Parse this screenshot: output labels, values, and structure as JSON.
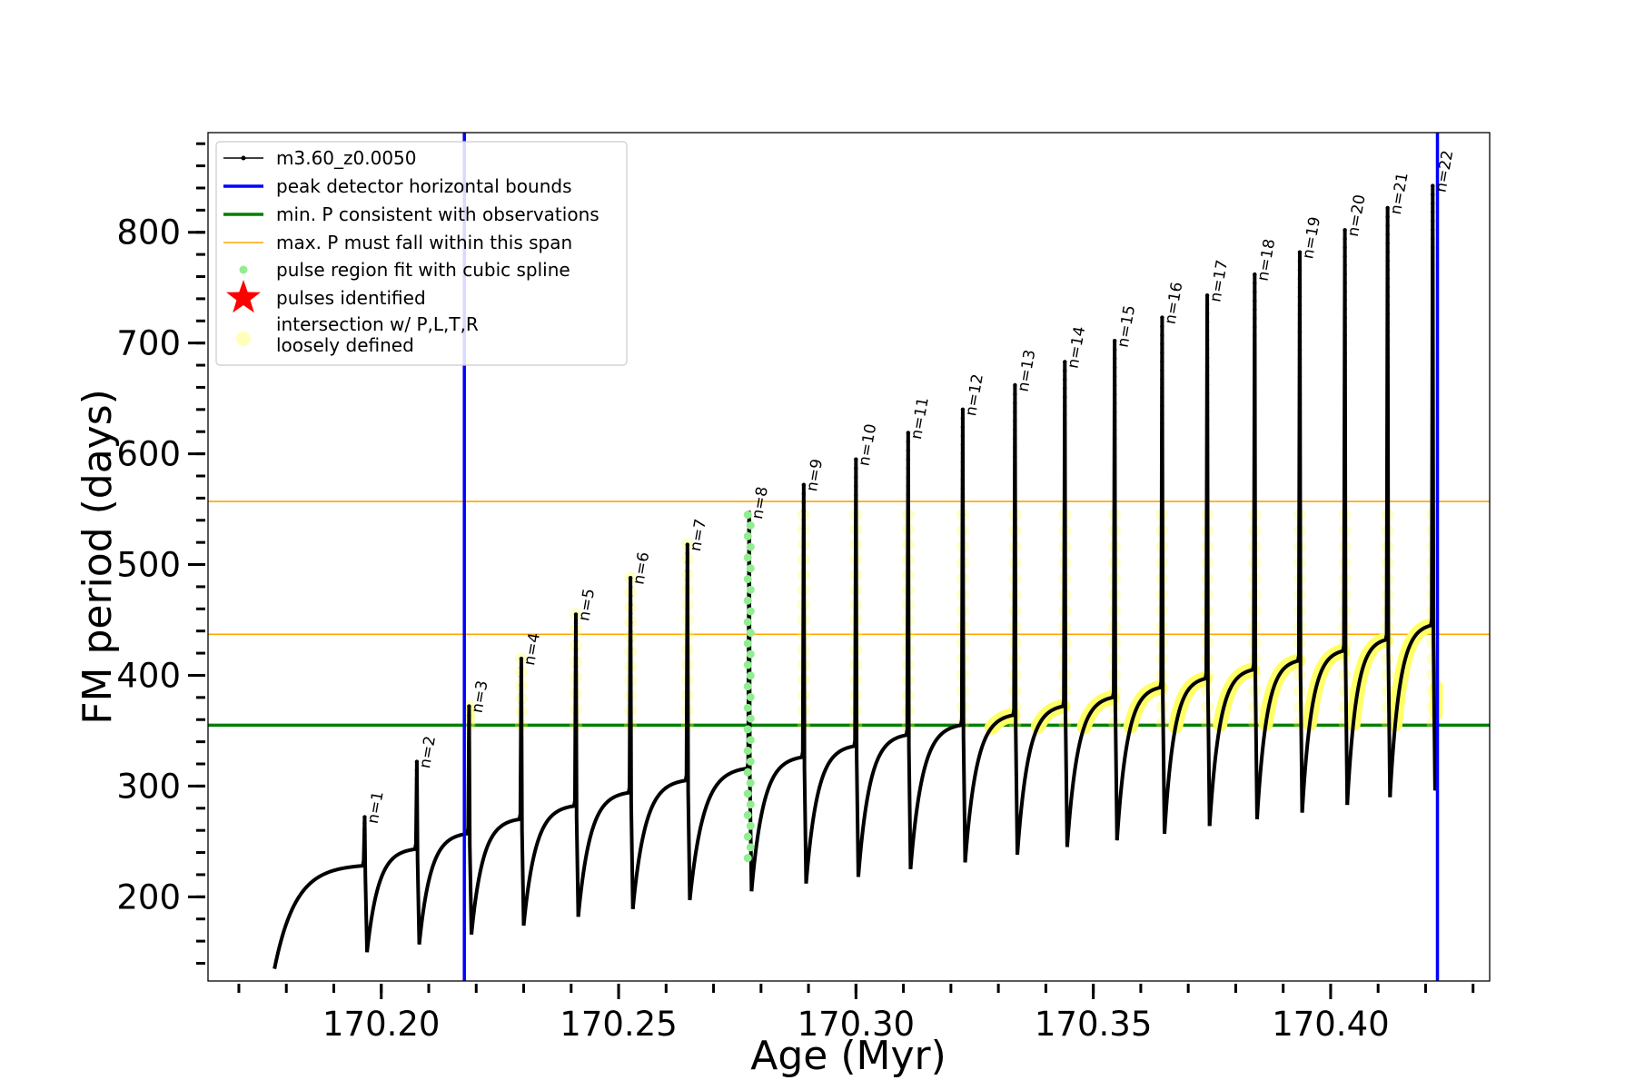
{
  "chart_data": {
    "type": "line",
    "xlabel": "Age (Myr)",
    "ylabel": "FM period (days)",
    "xlim": [
      170.1635,
      170.4335
    ],
    "ylim": [
      124,
      890
    ],
    "xticks_major": [
      170.2,
      170.25,
      170.3,
      170.35,
      170.4
    ],
    "xtick_labels": [
      "170.20",
      "170.25",
      "170.30",
      "170.35",
      "170.40"
    ],
    "xticks_minor_step": 0.01,
    "yticks_major": [
      200,
      300,
      400,
      500,
      600,
      700,
      800
    ],
    "ytick_labels": [
      "200",
      "300",
      "400",
      "500",
      "600",
      "700",
      "800"
    ],
    "yticks_minor_step": 20,
    "grid": false,
    "legend_position": "top-left",
    "series": [
      {
        "name": "m3.60_z0.0050",
        "color": "#000000",
        "style": "line with dots"
      },
      {
        "name": "peak detector horizontal bounds",
        "color": "#0000ff",
        "style": "vertical line"
      },
      {
        "name": "min. P consistent with observations",
        "color": "#008000",
        "style": "horizontal line"
      },
      {
        "name": "max. P must fall within this span",
        "color": "#ffa500",
        "style": "horizontal line"
      },
      {
        "name": "pulse region fit with cubic spline",
        "color": "#90ee90",
        "style": "points"
      },
      {
        "name": "pulses identified",
        "color": "#ff0000",
        "style": "star"
      },
      {
        "name": "intersection w/ P,L,T,R\nloosely defined",
        "color": "#ffff66",
        "style": "points"
      }
    ],
    "legend_lines": [
      "m3.60_z0.0050",
      "peak detector horizontal bounds",
      "min. P consistent with observations",
      "max. P must fall within this span",
      "pulse region fit with cubic spline",
      "pulses identified",
      "intersection w/ P,L,T,R",
      "loosely defined"
    ],
    "vlines_blue": [
      170.2175,
      170.4225
    ],
    "hline_green": 355,
    "hlines_orange": [
      437,
      557
    ],
    "start": {
      "x": 170.1775,
      "y": 135
    },
    "pulses": [
      {
        "label": "n=1",
        "x": 170.1965,
        "peak": 272,
        "min": 150,
        "pre": 228
      },
      {
        "label": "n=2",
        "x": 170.2075,
        "peak": 322,
        "min": 157,
        "pre": 243
      },
      {
        "label": "n=3",
        "x": 170.2185,
        "peak": 372,
        "min": 166,
        "pre": 257
      },
      {
        "label": "n=4",
        "x": 170.2295,
        "peak": 415,
        "min": 174,
        "pre": 270
      },
      {
        "label": "n=5",
        "x": 170.241,
        "peak": 455,
        "min": 182,
        "pre": 282
      },
      {
        "label": "n=6",
        "x": 170.2525,
        "peak": 488,
        "min": 189,
        "pre": 294
      },
      {
        "label": "n=7",
        "x": 170.2645,
        "peak": 518,
        "min": 197,
        "pre": 305
      },
      {
        "label": "n=8",
        "x": 170.2775,
        "peak": 547,
        "min": 205,
        "pre": 316
      },
      {
        "label": "n=9",
        "x": 170.289,
        "peak": 572,
        "min": 212,
        "pre": 326
      },
      {
        "label": "n=10",
        "x": 170.3,
        "peak": 595,
        "min": 218,
        "pre": 336
      },
      {
        "label": "n=11",
        "x": 170.311,
        "peak": 619,
        "min": 225,
        "pre": 346
      },
      {
        "label": "n=12",
        "x": 170.3225,
        "peak": 640,
        "min": 231,
        "pre": 355
      },
      {
        "label": "n=13",
        "x": 170.3335,
        "peak": 662,
        "min": 238,
        "pre": 364
      },
      {
        "label": "n=14",
        "x": 170.344,
        "peak": 683,
        "min": 245,
        "pre": 372
      },
      {
        "label": "n=15",
        "x": 170.3545,
        "peak": 702,
        "min": 251,
        "pre": 380
      },
      {
        "label": "n=16",
        "x": 170.3645,
        "peak": 723,
        "min": 257,
        "pre": 389
      },
      {
        "label": "n=17",
        "x": 170.374,
        "peak": 743,
        "min": 264,
        "pre": 397
      },
      {
        "label": "n=18",
        "x": 170.384,
        "peak": 762,
        "min": 270,
        "pre": 405
      },
      {
        "label": "n=19",
        "x": 170.3935,
        "peak": 782,
        "min": 276,
        "pre": 413
      },
      {
        "label": "n=20",
        "x": 170.403,
        "peak": 802,
        "min": 283,
        "pre": 422
      },
      {
        "label": "n=21",
        "x": 170.412,
        "peak": 822,
        "min": 290,
        "pre": 432
      },
      {
        "label": "n=22",
        "x": 170.4215,
        "peak": 842,
        "min": 296,
        "pre": 445
      }
    ]
  }
}
